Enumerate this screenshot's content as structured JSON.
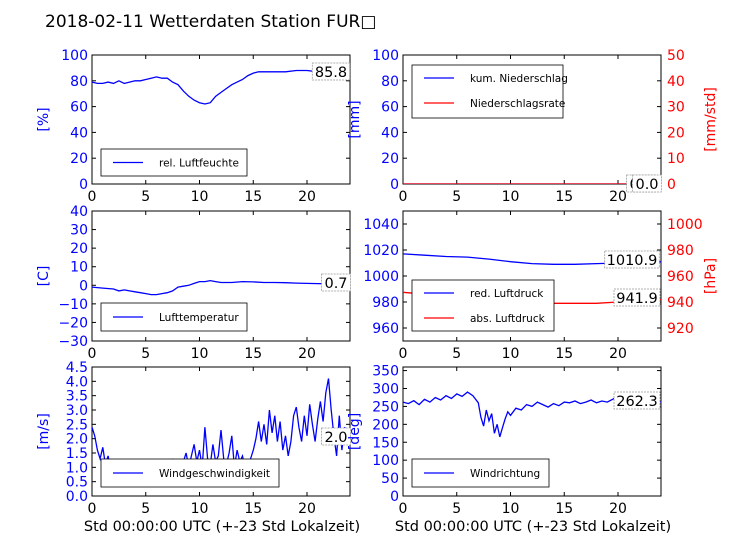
{
  "title": "2018-02-11 Wetterdaten Station FUR□",
  "xlabel": "Std 00:00:00 UTC (+-23 Std Lokalzeit)",
  "colors": {
    "left_axis": "#0000ff",
    "right_axis": "#ff0000",
    "series_primary": "#0000ff",
    "series_secondary": "#ff0000",
    "series_light": "#8080ff"
  },
  "chart_data": [
    {
      "id": "humidity",
      "type": "line",
      "ylabel": "[%]",
      "xlim": [
        0,
        24
      ],
      "ylim": [
        0,
        100
      ],
      "xticks": [
        "0",
        "5",
        "10",
        "15",
        "20"
      ],
      "yticks": [
        "0",
        "20",
        "40",
        "60",
        "80",
        "100"
      ],
      "legend": {
        "position": "bottom-left",
        "entries": [
          "rel. Luftfeuchte"
        ]
      },
      "annotations": [
        "85.8"
      ],
      "series": [
        {
          "name": "rel. Luftfeuchte",
          "axis": "left",
          "x": [
            0,
            0.5,
            1,
            1.5,
            2,
            2.5,
            3,
            3.5,
            4,
            4.5,
            5,
            5.5,
            6,
            6.5,
            7,
            7.5,
            8,
            8.5,
            9,
            9.5,
            10,
            10.5,
            11,
            11.5,
            12,
            12.5,
            13,
            13.5,
            14,
            14.5,
            15,
            15.5,
            16,
            17,
            18,
            19,
            20,
            21,
            22,
            23,
            24
          ],
          "values": [
            79,
            78,
            78,
            79,
            78,
            80,
            78,
            79,
            80,
            80,
            81,
            82,
            83,
            82,
            82,
            79,
            77,
            72,
            68,
            65,
            63,
            62,
            63,
            68,
            71,
            74,
            77,
            79,
            81,
            84,
            86,
            87,
            87,
            87,
            87,
            88,
            88,
            87,
            87,
            86,
            86
          ]
        }
      ]
    },
    {
      "id": "precipitation",
      "type": "line",
      "ylabel": "[mm]",
      "ylabel_right": "[mm/std]",
      "xlim": [
        0,
        24
      ],
      "ylim": [
        0,
        100
      ],
      "ylim_right": [
        0,
        50
      ],
      "xticks": [
        "0",
        "5",
        "10",
        "15",
        "20"
      ],
      "yticks": [
        "0",
        "20",
        "40",
        "60",
        "80",
        "100"
      ],
      "yticks_right": [
        "0",
        "10",
        "20",
        "30",
        "40",
        "50"
      ],
      "legend": {
        "position": "top-left",
        "entries": [
          "kum. Niederschlag",
          "Niederschlagsrate"
        ]
      },
      "annotations": [
        "0.0",
        "0.0"
      ],
      "series": [
        {
          "name": "kum. Niederschlag",
          "axis": "left",
          "x": [
            0,
            24
          ],
          "values": [
            0,
            0
          ]
        },
        {
          "name": "Niederschlagsrate",
          "axis": "right",
          "x": [
            0,
            24
          ],
          "values": [
            0,
            0
          ]
        }
      ]
    },
    {
      "id": "temperature",
      "type": "line",
      "ylabel": "[C]",
      "xlim": [
        0,
        24
      ],
      "ylim": [
        -30,
        40
      ],
      "xticks": [
        "0",
        "5",
        "10",
        "15",
        "20"
      ],
      "yticks": [
        "−30",
        "−20",
        "−10",
        "0",
        "10",
        "20",
        "30",
        "40"
      ],
      "legend": {
        "position": "bottom-left",
        "entries": [
          "Lufttemperatur"
        ]
      },
      "annotations": [
        "0.7"
      ],
      "series": [
        {
          "name": "Lufttemperatur",
          "axis": "left",
          "x": [
            0,
            1,
            2,
            2.5,
            3,
            3.5,
            4,
            4.5,
            5,
            5.5,
            6,
            6.5,
            7,
            7.5,
            8,
            8.5,
            9,
            9.5,
            10,
            10.5,
            11,
            11.5,
            12,
            13,
            14,
            15,
            16,
            17,
            18,
            19,
            20,
            21,
            22,
            23,
            24
          ],
          "values": [
            -1,
            -1.5,
            -2,
            -3,
            -2.5,
            -3,
            -3.5,
            -4,
            -4.5,
            -5,
            -5,
            -4.5,
            -4,
            -3,
            -1,
            -0.5,
            0,
            1,
            2,
            2,
            2.5,
            2,
            1.5,
            1.5,
            2,
            1.8,
            1.5,
            1.5,
            1.4,
            1.2,
            1,
            0.9,
            0.8,
            0.7,
            0.7
          ]
        }
      ]
    },
    {
      "id": "pressure",
      "type": "line",
      "ylabel_right": "[hPa]",
      "xlim": [
        0,
        24
      ],
      "ylim": [
        950,
        1050
      ],
      "ylim_right": [
        910,
        1010
      ],
      "xticks": [
        "0",
        "5",
        "10",
        "15",
        "20"
      ],
      "yticks": [
        "960",
        "980",
        "1000",
        "1020",
        "1040"
      ],
      "yticks_right": [
        "920",
        "940",
        "960",
        "980",
        "1000"
      ],
      "legend": {
        "position": "bottom-left",
        "entries": [
          "red. Luftdruck",
          "abs. Luftdruck"
        ]
      },
      "annotations": [
        "1010.9",
        "941.9"
      ],
      "series": [
        {
          "name": "red. Luftdruck",
          "axis": "left",
          "x": [
            0,
            2,
            4,
            6,
            8,
            10,
            12,
            14,
            16,
            18,
            20,
            22,
            24
          ],
          "values": [
            1017,
            1016,
            1015,
            1014.5,
            1013,
            1011,
            1009.5,
            1009,
            1009,
            1009.5,
            1010,
            1010.5,
            1010.9
          ]
        },
        {
          "name": "abs. Luftdruck",
          "axis": "right",
          "x": [
            0,
            2,
            4,
            6,
            8,
            10,
            12,
            14,
            16,
            18,
            20,
            22,
            24
          ],
          "values": [
            947.5,
            946,
            944.5,
            943.5,
            942,
            940.5,
            939.5,
            939,
            939,
            939,
            940,
            941,
            941.9
          ]
        }
      ]
    },
    {
      "id": "windspeed",
      "type": "line",
      "ylabel": "[m/s]",
      "xlim": [
        0,
        24
      ],
      "ylim": [
        0,
        4.5
      ],
      "xticks": [
        "0",
        "5",
        "10",
        "15",
        "20"
      ],
      "yticks": [
        "0.0",
        "0.5",
        "1.0",
        "1.5",
        "2.0",
        "2.5",
        "3.0",
        "3.5",
        "4.0",
        "4.5"
      ],
      "legend": {
        "position": "bottom-left",
        "entries": [
          "Windgeschwindigkeit"
        ]
      },
      "annotations": [
        "2.0"
      ],
      "series": [
        {
          "name": "Windgeschwindigkeit",
          "axis": "left",
          "x": [
            0,
            0.25,
            0.5,
            0.75,
            1,
            1.25,
            1.5,
            1.75,
            2,
            2.25,
            2.5,
            2.75,
            3,
            3.25,
            3.5,
            3.75,
            4,
            4.25,
            4.5,
            4.75,
            5,
            5.25,
            5.5,
            5.75,
            6,
            6.25,
            6.5,
            6.75,
            7,
            7.25,
            7.5,
            7.75,
            8,
            8.25,
            8.5,
            8.75,
            9,
            9.25,
            9.5,
            9.75,
            10,
            10.25,
            10.5,
            10.75,
            11,
            11.25,
            11.5,
            11.75,
            12,
            12.25,
            12.5,
            12.75,
            13,
            13.25,
            13.5,
            13.75,
            14,
            14.25,
            14.5,
            14.75,
            15,
            15.25,
            15.5,
            15.75,
            16,
            16.25,
            16.5,
            16.75,
            17,
            17.25,
            17.5,
            17.75,
            18,
            18.25,
            18.5,
            18.75,
            19,
            19.25,
            19.5,
            19.75,
            20,
            20.25,
            20.5,
            20.75,
            21,
            21.25,
            21.5,
            21.75,
            22,
            22.25,
            22.5,
            22.75,
            23,
            23.25,
            23.5,
            23.75,
            24
          ],
          "values": [
            2.4,
            2.1,
            1.6,
            1.3,
            1.7,
            1.1,
            1.4,
            0.9,
            1.2,
            0.7,
            1.0,
            0.6,
            1.1,
            0.8,
            0.6,
            1.0,
            0.7,
            0.9,
            0.5,
            0.8,
            0.6,
            1.0,
            0.7,
            1.2,
            0.8,
            0.6,
            0.9,
            1.1,
            0.7,
            0.9,
            1.3,
            0.8,
            1.0,
            0.6,
            1.2,
            1.5,
            1.0,
            1.4,
            1.8,
            1.2,
            1.6,
            1.0,
            2.4,
            1.3,
            1.1,
            1.8,
            1.2,
            1.4,
            2.3,
            1.3,
            1.1,
            1.5,
            2.1,
            1.0,
            1.6,
            1.2,
            1.4,
            0.9,
            1.1,
            1.3,
            1.6,
            2.0,
            2.6,
            1.9,
            2.5,
            1.8,
            3.0,
            2.2,
            2.8,
            1.9,
            2.6,
            1.6,
            2.1,
            1.4,
            1.9,
            2.8,
            3.1,
            2.4,
            1.9,
            2.8,
            2.1,
            3.2,
            2.5,
            1.9,
            2.7,
            3.3,
            2.6,
            3.6,
            4.1,
            3.0,
            2.1,
            1.4,
            2.8,
            1.6,
            2.4,
            2.0,
            2.0
          ]
        }
      ]
    },
    {
      "id": "winddirection",
      "type": "line",
      "ylabel": "[deg]",
      "xlim": [
        0,
        24
      ],
      "ylim": [
        0,
        360
      ],
      "xticks": [
        "0",
        "5",
        "10",
        "15",
        "20"
      ],
      "yticks": [
        "0",
        "50",
        "100",
        "150",
        "200",
        "250",
        "300",
        "350"
      ],
      "legend": {
        "position": "bottom-left",
        "entries": [
          "Windrichtung"
        ]
      },
      "annotations": [
        "262.3"
      ],
      "series": [
        {
          "name": "Windrichtung",
          "axis": "left",
          "x": [
            0,
            0.5,
            1,
            1.5,
            2,
            2.5,
            3,
            3.5,
            4,
            4.5,
            5,
            5.5,
            6,
            6.5,
            7,
            7.25,
            7.5,
            7.75,
            8,
            8.25,
            8.5,
            8.75,
            9,
            9.25,
            9.5,
            9.75,
            10,
            10.5,
            11,
            11.5,
            12,
            12.5,
            13,
            13.5,
            14,
            14.5,
            15,
            15.5,
            16,
            16.5,
            17,
            17.5,
            18,
            18.5,
            19,
            19.5,
            20,
            20.5,
            21,
            21.5,
            22,
            22.5,
            23,
            23.5,
            24
          ],
          "values": [
            262,
            258,
            266,
            255,
            270,
            262,
            275,
            268,
            280,
            272,
            285,
            278,
            290,
            280,
            260,
            220,
            195,
            240,
            210,
            230,
            175,
            200,
            165,
            190,
            215,
            235,
            225,
            245,
            240,
            255,
            250,
            262,
            255,
            248,
            258,
            252,
            262,
            260,
            265,
            258,
            262,
            268,
            260,
            265,
            262,
            270,
            278,
            265,
            272,
            260,
            275,
            268,
            258,
            270,
            262
          ]
        }
      ]
    }
  ]
}
